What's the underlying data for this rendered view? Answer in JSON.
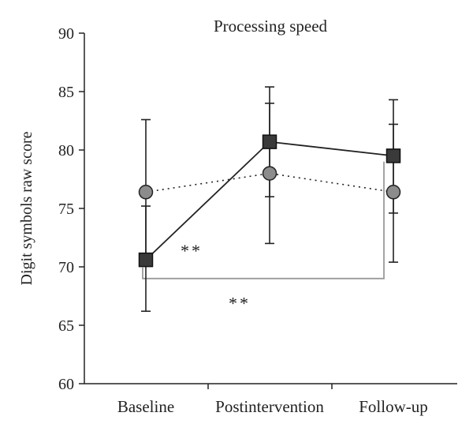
{
  "chart_data": {
    "type": "line",
    "title": "Processing speed",
    "ylabel": "Digit symbols raw score",
    "xlabel": "",
    "ylim": [
      60,
      90
    ],
    "yticks": [
      60,
      65,
      70,
      75,
      80,
      85,
      90
    ],
    "grid": false,
    "categories": [
      "Baseline",
      "Postintervention",
      "Follow-up"
    ],
    "series": [
      {
        "marker": "square",
        "line_style": "solid",
        "color": "#3a3a3a",
        "values": [
          70.6,
          80.7,
          79.5
        ],
        "error_upper": [
          75.2,
          85.4,
          84.3
        ],
        "error_lower": [
          66.2,
          76.0,
          74.6
        ]
      },
      {
        "marker": "circle",
        "line_style": "dotted",
        "color": "#8c8c8c",
        "values": [
          76.4,
          78.0,
          76.4
        ],
        "error_upper": [
          82.6,
          84.0,
          82.2
        ],
        "error_lower": [
          70.2,
          72.0,
          70.4
        ]
      }
    ],
    "annotations": [
      {
        "text": "**",
        "x": "Baseline",
        "y": 71.5
      },
      {
        "text": "**",
        "x": "Postintervention",
        "y": 67.0
      }
    ],
    "bracket": {
      "from": "Baseline",
      "to": "Follow-up",
      "y": 69.0,
      "top_right": 79.0,
      "color": "#9a9a9a"
    }
  }
}
